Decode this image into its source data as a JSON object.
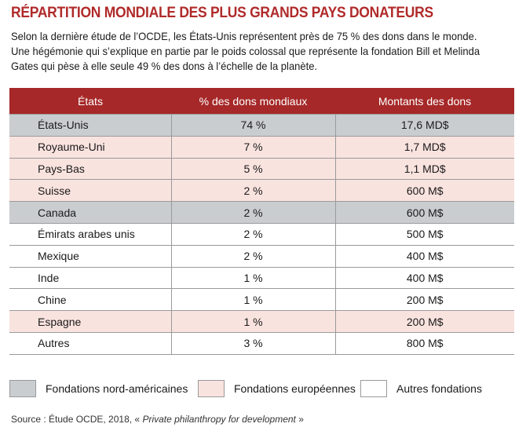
{
  "title": "RÉPARTITION MONDIALE DES PLUS GRANDS PAYS DONATEURS",
  "intro": {
    "line1": "Selon la dernière étude de l’OCDE, les États-Unis représentent près de 75 % des dons dans le monde.",
    "line2": "Une hégémonie qui s’explique en partie par le poids colossal que représente la fondation Bill et Melinda",
    "line3": "Gates qui pèse à elle seule 49 % des dons à l’échelle de la planète."
  },
  "colors": {
    "title": "#b02a2a",
    "header_bg": "#a62828",
    "north_american": "#c9cdd0",
    "european": "#f9e3df",
    "other": "#ffffff"
  },
  "chart_data": {
    "type": "table",
    "columns": [
      "États",
      "% des dons mondiaux",
      "Montants des dons"
    ],
    "rows": [
      {
        "country": "États-Unis",
        "percent": "74 %",
        "amount": "17,6 MD$",
        "category": "north_american"
      },
      {
        "country": "Royaume-Uni",
        "percent": "7 %",
        "amount": "1,7 MD$",
        "category": "european"
      },
      {
        "country": "Pays-Bas",
        "percent": "5 %",
        "amount": "1,1 MD$",
        "category": "european"
      },
      {
        "country": "Suisse",
        "percent": "2 %",
        "amount": "600 M$",
        "category": "european"
      },
      {
        "country": "Canada",
        "percent": "2 %",
        "amount": "600 M$",
        "category": "north_american"
      },
      {
        "country": "Émirats arabes unis",
        "percent": "2 %",
        "amount": "500 M$",
        "category": "other"
      },
      {
        "country": "Mexique",
        "percent": "2 %",
        "amount": "400 M$",
        "category": "other"
      },
      {
        "country": "Inde",
        "percent": "1 %",
        "amount": "400 M$",
        "category": "other"
      },
      {
        "country": "Chine",
        "percent": "1 %",
        "amount": "200 M$",
        "category": "other"
      },
      {
        "country": "Espagne",
        "percent": "1 %",
        "amount": "200 M$",
        "category": "european"
      },
      {
        "country": "Autres",
        "percent": "3 %",
        "amount": "800 M$",
        "category": "other"
      }
    ],
    "legend": [
      {
        "category": "north_american",
        "label": "Fondations nord-américaines"
      },
      {
        "category": "european",
        "label": "Fondations européennes"
      },
      {
        "category": "other",
        "label": "Autres fondations"
      }
    ]
  },
  "source": {
    "prefix": "Source : Étude OCDE, 2018, « ",
    "title": "Private philanthropy for development",
    "suffix": " »"
  }
}
